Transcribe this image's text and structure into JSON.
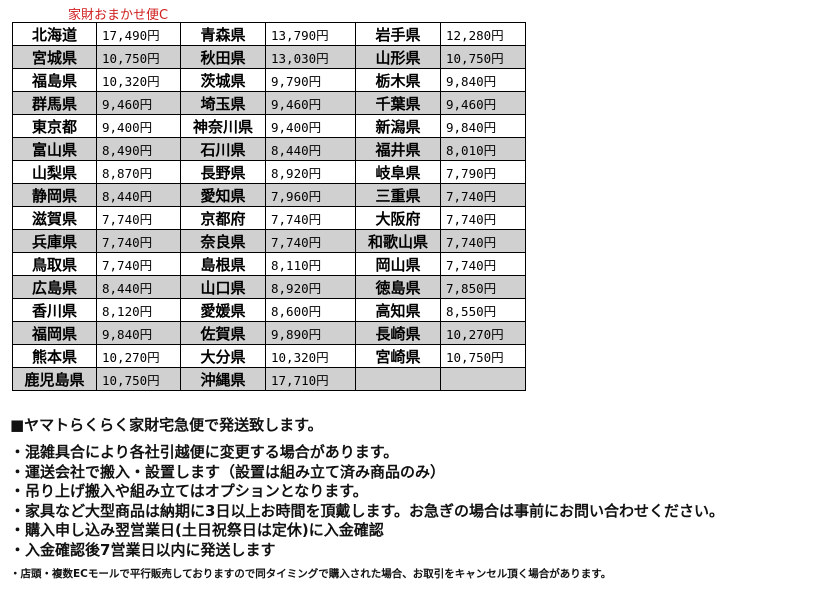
{
  "title": "家財おまかせ便C",
  "rows": [
    [
      [
        "北海道",
        "17,490円"
      ],
      [
        "青森県",
        "13,790円"
      ],
      [
        "岩手県",
        "12,280円"
      ]
    ],
    [
      [
        "宮城県",
        "10,750円"
      ],
      [
        "秋田県",
        "13,030円"
      ],
      [
        "山形県",
        "10,750円"
      ]
    ],
    [
      [
        "福島県",
        "10,320円"
      ],
      [
        "茨城県",
        "9,790円"
      ],
      [
        "栃木県",
        "9,840円"
      ]
    ],
    [
      [
        "群馬県",
        "9,460円"
      ],
      [
        "埼玉県",
        "9,460円"
      ],
      [
        "千葉県",
        "9,460円"
      ]
    ],
    [
      [
        "東京都",
        "9,400円"
      ],
      [
        "神奈川県",
        "9,400円"
      ],
      [
        "新潟県",
        "9,840円"
      ]
    ],
    [
      [
        "富山県",
        "8,490円"
      ],
      [
        "石川県",
        "8,440円"
      ],
      [
        "福井県",
        "8,010円"
      ]
    ],
    [
      [
        "山梨県",
        "8,870円"
      ],
      [
        "長野県",
        "8,920円"
      ],
      [
        "岐阜県",
        "7,790円"
      ]
    ],
    [
      [
        "静岡県",
        "8,440円"
      ],
      [
        "愛知県",
        "7,960円"
      ],
      [
        "三重県",
        "7,740円"
      ]
    ],
    [
      [
        "滋賀県",
        "7,740円"
      ],
      [
        "京都府",
        "7,740円"
      ],
      [
        "大阪府",
        "7,740円"
      ]
    ],
    [
      [
        "兵庫県",
        "7,740円"
      ],
      [
        "奈良県",
        "7,740円"
      ],
      [
        "和歌山県",
        "7,740円"
      ]
    ],
    [
      [
        "鳥取県",
        "7,740円"
      ],
      [
        "島根県",
        "8,110円"
      ],
      [
        "岡山県",
        "7,740円"
      ]
    ],
    [
      [
        "広島県",
        "8,440円"
      ],
      [
        "山口県",
        "8,920円"
      ],
      [
        "徳島県",
        "7,850円"
      ]
    ],
    [
      [
        "香川県",
        "8,120円"
      ],
      [
        "愛媛県",
        "8,600円"
      ],
      [
        "高知県",
        "8,550円"
      ]
    ],
    [
      [
        "福岡県",
        "9,840円"
      ],
      [
        "佐賀県",
        "9,890円"
      ],
      [
        "長崎県",
        "10,270円"
      ]
    ],
    [
      [
        "熊本県",
        "10,270円"
      ],
      [
        "大分県",
        "10,320円"
      ],
      [
        "宮崎県",
        "10,750円"
      ]
    ],
    [
      [
        "鹿児島県",
        "10,750円"
      ],
      [
        "沖縄県",
        "17,710円"
      ],
      [
        "",
        ""
      ]
    ]
  ],
  "notes": {
    "heading": "■ヤマトらくらく家財宅急便で発送致します。",
    "bullets": [
      "・混雑具合により各社引越便に変更する場合があります。",
      "・運送会社で搬入・設置します（設置は組み立て済み商品のみ）",
      "・吊り上げ搬入や組み立てはオプションとなります。",
      "・家具など大型商品は納期に3日以上お時間を頂戴します。お急ぎの場合は事前にお問い合わせください。",
      "・購入申し込み翌営業日(土日祝祭日は定休)に入金確認",
      "・入金確認後7営業日以内に発送します"
    ],
    "small": "・店頭・複数ECモールで平行販売しておりますので同タイミングで購入された場合、お取引をキャンセル頂く場合があります。"
  },
  "colors": {
    "title": "#d02020",
    "row_alt": "#d0d0d0"
  }
}
